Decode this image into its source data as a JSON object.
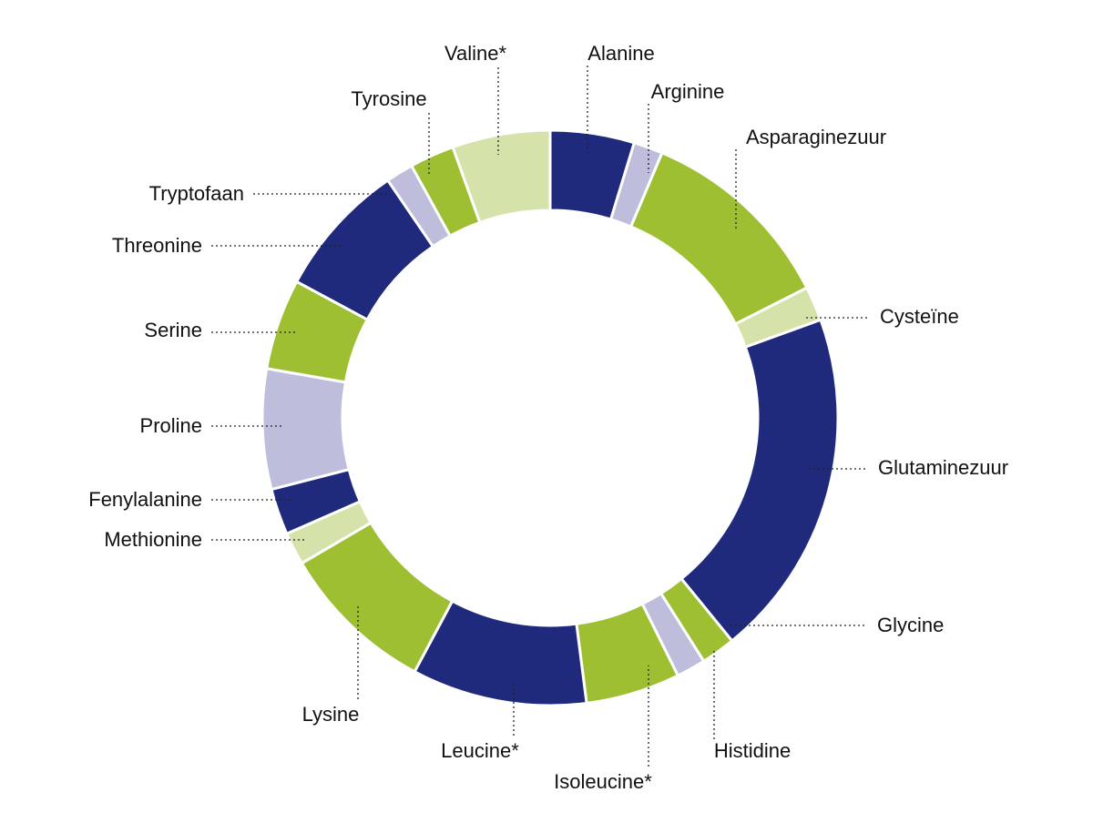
{
  "chart_data": {
    "type": "pie",
    "style": "donut",
    "legend": "none",
    "palette": {
      "navy": "#202A7D",
      "green": "#9FBF33",
      "lightgreen": "#D5E2AA",
      "lavender": "#BEBDDB"
    },
    "slices": [
      {
        "label": "Alanine",
        "value": 4.9,
        "color": "#202A7D"
      },
      {
        "label": "Arginine",
        "value": 1.7,
        "color": "#BEBDDB"
      },
      {
        "label": "Asparaginezuur",
        "value": 11.6,
        "color": "#9FBF33"
      },
      {
        "label": "Cysteïne",
        "value": 2.0,
        "color": "#D5E2AA"
      },
      {
        "label": "Glutaminezuur",
        "value": 20.4,
        "color": "#202A7D"
      },
      {
        "label": "Glycine",
        "value": 2.0,
        "color": "#9FBF33"
      },
      {
        "label": "Histidine",
        "value": 1.7,
        "color": "#BEBDDB"
      },
      {
        "label": "Isoleucine*",
        "value": 5.5,
        "color": "#9FBF33"
      },
      {
        "label": "Leucine*",
        "value": 10.2,
        "color": "#202A7D"
      },
      {
        "label": "Lysine",
        "value": 9.1,
        "color": "#9FBF33"
      },
      {
        "label": "Methionine",
        "value": 1.9,
        "color": "#D5E2AA"
      },
      {
        "label": "Fenylalanine",
        "value": 2.7,
        "color": "#202A7D"
      },
      {
        "label": "Proline",
        "value": 7.0,
        "color": "#BEBDDB"
      },
      {
        "label": "Serine",
        "value": 5.3,
        "color": "#9FBF33"
      },
      {
        "label": "Threonine",
        "value": 7.9,
        "color": "#202A7D"
      },
      {
        "label": "Tryptofaan",
        "value": 1.6,
        "color": "#BEBDDB"
      },
      {
        "label": "Tyrosine",
        "value": 2.6,
        "color": "#9FBF33"
      },
      {
        "label": "Valine*",
        "value": 5.7,
        "color": "#D5E2AA"
      }
    ]
  }
}
